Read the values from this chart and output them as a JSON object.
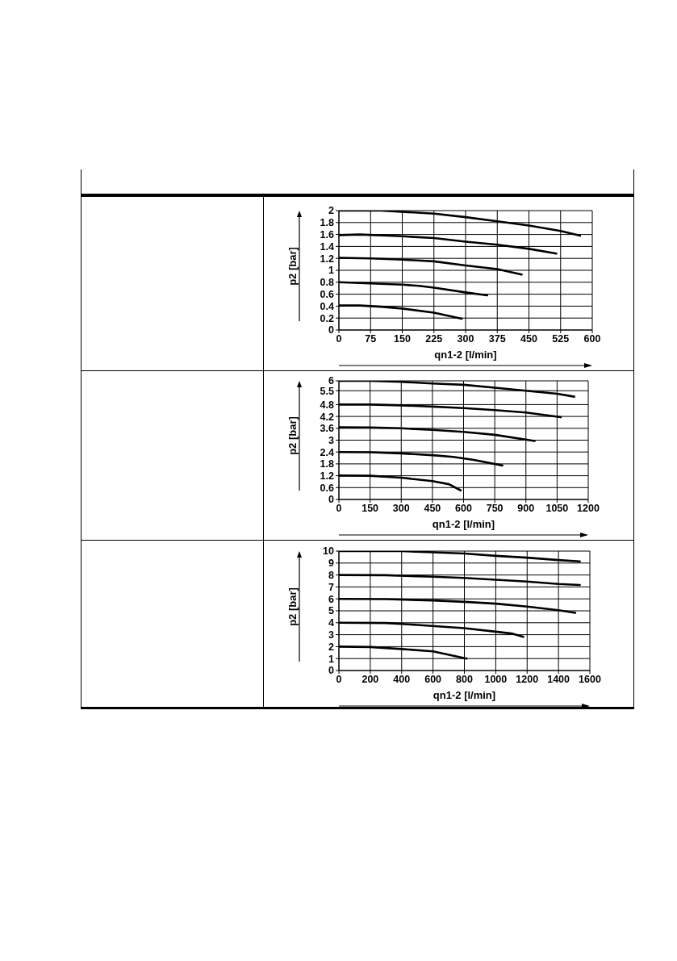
{
  "chart_data": [
    {
      "type": "line",
      "xlabel": "qn1-2 [l/min]",
      "ylabel": "p2 [bar]",
      "xlim": [
        0,
        600
      ],
      "xticks": [
        0,
        75,
        150,
        225,
        300,
        375,
        450,
        525,
        600
      ],
      "ylim": [
        0,
        2
      ],
      "yticks": [
        0,
        0.2,
        0.4,
        0.6,
        0.8,
        1,
        1.2,
        1.4,
        1.6,
        1.8,
        2
      ],
      "grid": true,
      "series": [
        {
          "color": "#000000",
          "x": [
            0,
            100,
            225,
            300,
            375,
            450,
            525,
            571
          ],
          "values": [
            2.0,
            2.0,
            1.95,
            1.89,
            1.82,
            1.75,
            1.66,
            1.58
          ]
        },
        {
          "color": "#000000",
          "x": [
            0,
            50,
            150,
            225,
            300,
            375,
            450,
            515
          ],
          "values": [
            1.59,
            1.6,
            1.57,
            1.54,
            1.48,
            1.43,
            1.36,
            1.28
          ]
        },
        {
          "color": "#000000",
          "x": [
            0,
            75,
            150,
            225,
            300,
            375,
            433
          ],
          "values": [
            1.21,
            1.2,
            1.18,
            1.15,
            1.08,
            1.02,
            0.93
          ]
        },
        {
          "color": "#000000",
          "x": [
            0,
            75,
            150,
            190,
            225,
            300,
            351
          ],
          "values": [
            0.8,
            0.78,
            0.76,
            0.74,
            0.71,
            0.63,
            0.58
          ]
        },
        {
          "color": "#000000",
          "x": [
            0,
            50,
            100,
            150,
            225,
            291
          ],
          "values": [
            0.41,
            0.41,
            0.39,
            0.36,
            0.29,
            0.19
          ]
        }
      ]
    },
    {
      "type": "line",
      "xlabel": "qn1-2 [l/min]",
      "ylabel": "p2 [bar]",
      "xlim": [
        0,
        1200
      ],
      "xticks": [
        0,
        150,
        300,
        450,
        600,
        750,
        900,
        1050,
        1200
      ],
      "ylim": [
        0,
        6
      ],
      "yticks": [
        0,
        0.6,
        1.2,
        1.8,
        2.4,
        3,
        3.6,
        4.2,
        4.8,
        5.5,
        6
      ],
      "grid": true,
      "series": [
        {
          "color": "#000000",
          "x": [
            0,
            150,
            300,
            450,
            600,
            750,
            900,
            1050,
            1133
          ],
          "values": [
            6.0,
            6.0,
            5.95,
            5.87,
            5.8,
            5.65,
            5.5,
            5.35,
            5.2
          ]
        },
        {
          "color": "#000000",
          "x": [
            0,
            150,
            300,
            450,
            600,
            750,
            900,
            1068
          ],
          "values": [
            4.8,
            4.8,
            4.76,
            4.7,
            4.62,
            4.52,
            4.4,
            4.16
          ]
        },
        {
          "color": "#000000",
          "x": [
            0,
            150,
            300,
            450,
            600,
            750,
            942
          ],
          "values": [
            3.65,
            3.64,
            3.6,
            3.52,
            3.42,
            3.27,
            2.96
          ]
        },
        {
          "color": "#000000",
          "x": [
            0,
            150,
            300,
            450,
            550,
            650,
            787
          ],
          "values": [
            2.4,
            2.39,
            2.33,
            2.24,
            2.15,
            2.0,
            1.72
          ]
        },
        {
          "color": "#000000",
          "x": [
            0,
            150,
            300,
            450,
            530,
            586
          ],
          "values": [
            1.21,
            1.2,
            1.1,
            0.93,
            0.77,
            0.46
          ]
        }
      ]
    },
    {
      "type": "line",
      "xlabel": "qn1-2 [l/min]",
      "ylabel": "p2 [bar]",
      "xlim": [
        0,
        1600
      ],
      "xticks": [
        0,
        200,
        400,
        600,
        800,
        1000,
        1200,
        1400,
        1600
      ],
      "ylim": [
        0,
        10
      ],
      "yticks": [
        0,
        1,
        2,
        3,
        4,
        5,
        6,
        7,
        8,
        9,
        10
      ],
      "grid": true,
      "series": [
        {
          "color": "#000000",
          "x": [
            0,
            400,
            600,
            800,
            1000,
            1200,
            1400,
            1536
          ],
          "values": [
            10,
            10,
            9.9,
            9.8,
            9.6,
            9.45,
            9.25,
            9.14
          ]
        },
        {
          "color": "#000000",
          "x": [
            0,
            300,
            600,
            800,
            1000,
            1200,
            1400,
            1536
          ],
          "values": [
            8,
            7.98,
            7.85,
            7.75,
            7.6,
            7.45,
            7.25,
            7.16
          ]
        },
        {
          "color": "#000000",
          "x": [
            0,
            300,
            600,
            800,
            1000,
            1200,
            1400,
            1507
          ],
          "values": [
            6.0,
            5.98,
            5.87,
            5.75,
            5.6,
            5.35,
            5.05,
            4.83
          ]
        },
        {
          "color": "#000000",
          "x": [
            0,
            300,
            500,
            800,
            1000,
            1100,
            1176
          ],
          "values": [
            4,
            3.98,
            3.82,
            3.55,
            3.25,
            3.1,
            2.82
          ]
        },
        {
          "color": "#000000",
          "x": [
            0,
            200,
            400,
            600,
            815
          ],
          "values": [
            2.0,
            1.97,
            1.8,
            1.6,
            1.0
          ]
        }
      ]
    }
  ]
}
